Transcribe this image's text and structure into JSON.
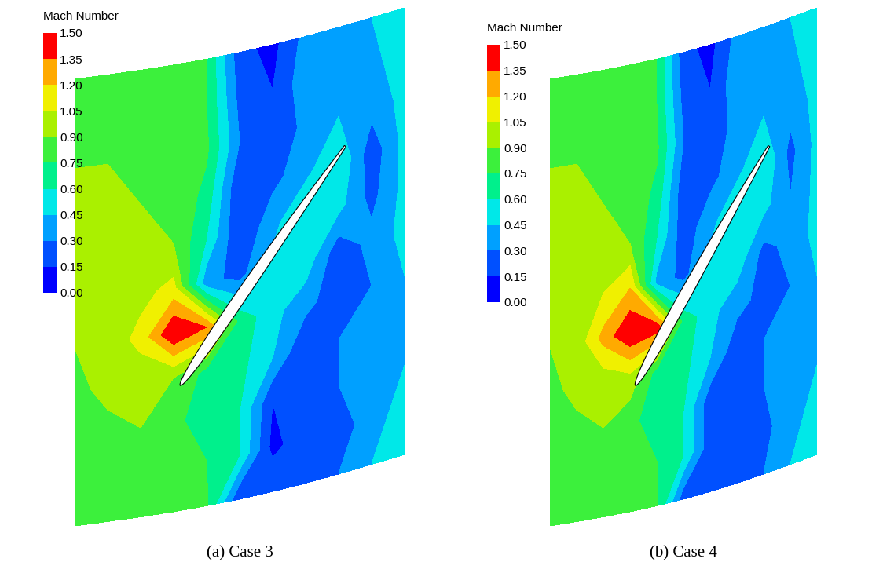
{
  "chart_data": [
    {
      "type": "contour",
      "title": "(a) Case 3",
      "colorbar_label": "Mach Number",
      "colorbar_range": [
        0,
        1.5
      ],
      "colorbar_ticks": [
        {
          "value": 0,
          "label": "0.00"
        },
        {
          "value": 0.15,
          "label": "0.15"
        },
        {
          "value": 0.3,
          "label": "0.30"
        },
        {
          "value": 0.45,
          "label": "0.45"
        },
        {
          "value": 0.6,
          "label": "0.60"
        },
        {
          "value": 0.75,
          "label": "0.75"
        },
        {
          "value": 0.9,
          "label": "0.90"
        },
        {
          "value": 1.05,
          "label": "1.05"
        },
        {
          "value": 1.2,
          "label": "1.20"
        },
        {
          "value": 1.35,
          "label": "1.35"
        },
        {
          "value": 1.5,
          "label": "1.50"
        }
      ],
      "colors": [
        "#0000ff",
        "#0050ff",
        "#00a0ff",
        "#00e8e8",
        "#00f08c",
        "#3cf03c",
        "#aaf000",
        "#f0f000",
        "#ffaa00",
        "#ff0000"
      ],
      "cells": [
        [
          0.9,
          0.9,
          0.88,
          0.85,
          0.75,
          0.2,
          0.1,
          0.35,
          0.3,
          0.45,
          0.55
        ],
        [
          0.9,
          0.9,
          0.88,
          0.85,
          0.75,
          0.25,
          0.15,
          0.4,
          0.35,
          0.4,
          0.55
        ],
        [
          0.9,
          0.9,
          0.9,
          0.85,
          0.78,
          0.3,
          0.15,
          0.35,
          0.45,
          0.35,
          0.5
        ],
        [
          0.92,
          0.92,
          0.9,
          0.88,
          0.7,
          0.15,
          0.25,
          0.4,
          0.6,
          0.2,
          0.5
        ],
        [
          0.92,
          0.95,
          0.95,
          0.9,
          0.6,
          0.15,
          0.4,
          0.6,
          0.5,
          0.25,
          0.5
        ],
        [
          0.92,
          0.95,
          1.0,
          1.1,
          0.35,
          0.25,
          0.5,
          0.55,
          0.2,
          0.35,
          0.5
        ],
        [
          0.9,
          0.95,
          1.1,
          1.5,
          1.35,
          0.7,
          0.5,
          0.35,
          0.2,
          0.3,
          0.45
        ],
        [
          0.88,
          0.92,
          0.95,
          0.9,
          0.7,
          0.65,
          0.45,
          0.15,
          0.3,
          0.35,
          0.45
        ],
        [
          0.85,
          0.88,
          0.9,
          0.8,
          0.65,
          0.6,
          0.15,
          0.25,
          0.3,
          0.35,
          0.45
        ],
        [
          0.8,
          0.85,
          0.85,
          0.8,
          0.75,
          0.6,
          0.1,
          0.25,
          0.2,
          0.4,
          0.5
        ],
        [
          0.8,
          0.82,
          0.82,
          0.8,
          0.78,
          0.15,
          0.3,
          0.25,
          0.3,
          0.45,
          0.55
        ]
      ]
    },
    {
      "type": "contour",
      "title": "(b) Case 4",
      "colorbar_label": "Mach Number",
      "colorbar_range": [
        0,
        1.5
      ],
      "colorbar_ticks": [
        {
          "value": 0,
          "label": "0.00"
        },
        {
          "value": 0.15,
          "label": "0.15"
        },
        {
          "value": 0.3,
          "label": "0.30"
        },
        {
          "value": 0.45,
          "label": "0.45"
        },
        {
          "value": 0.6,
          "label": "0.60"
        },
        {
          "value": 0.75,
          "label": "0.75"
        },
        {
          "value": 0.9,
          "label": "0.90"
        },
        {
          "value": 1.05,
          "label": "1.05"
        },
        {
          "value": 1.2,
          "label": "1.20"
        },
        {
          "value": 1.35,
          "label": "1.35"
        },
        {
          "value": 1.5,
          "label": "1.50"
        }
      ],
      "colors": [
        "#0000ff",
        "#0050ff",
        "#00a0ff",
        "#00e8e8",
        "#00f08c",
        "#3cf03c",
        "#aaf000",
        "#f0f000",
        "#ffaa00",
        "#ff0000"
      ],
      "cells": [
        [
          0.9,
          0.9,
          0.88,
          0.85,
          0.75,
          0.2,
          0.1,
          0.35,
          0.3,
          0.45,
          0.55
        ],
        [
          0.9,
          0.9,
          0.88,
          0.85,
          0.75,
          0.25,
          0.15,
          0.4,
          0.35,
          0.4,
          0.55
        ],
        [
          0.9,
          0.9,
          0.9,
          0.85,
          0.78,
          0.3,
          0.2,
          0.35,
          0.45,
          0.35,
          0.5
        ],
        [
          0.92,
          0.92,
          0.9,
          0.88,
          0.7,
          0.2,
          0.25,
          0.4,
          0.6,
          0.25,
          0.5
        ],
        [
          0.92,
          0.95,
          0.95,
          0.9,
          0.6,
          0.2,
          0.4,
          0.6,
          0.5,
          0.3,
          0.5
        ],
        [
          0.92,
          0.95,
          1.05,
          1.2,
          0.4,
          0.25,
          0.5,
          0.55,
          0.25,
          0.35,
          0.5
        ],
        [
          0.9,
          0.95,
          1.25,
          1.5,
          1.45,
          0.7,
          0.5,
          0.35,
          0.25,
          0.3,
          0.45
        ],
        [
          0.88,
          0.92,
          0.95,
          1.0,
          0.7,
          0.65,
          0.45,
          0.2,
          0.3,
          0.35,
          0.45
        ],
        [
          0.85,
          0.88,
          0.9,
          0.8,
          0.65,
          0.6,
          0.2,
          0.25,
          0.3,
          0.35,
          0.45
        ],
        [
          0.8,
          0.85,
          0.85,
          0.8,
          0.75,
          0.6,
          0.2,
          0.25,
          0.25,
          0.4,
          0.5
        ],
        [
          0.8,
          0.82,
          0.82,
          0.8,
          0.78,
          0.2,
          0.3,
          0.25,
          0.3,
          0.45,
          0.55
        ]
      ]
    }
  ]
}
